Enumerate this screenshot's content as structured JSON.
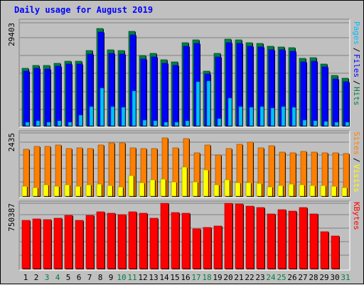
{
  "chart_data": {
    "type": "bar",
    "title": "Daily usage for August 2019",
    "colors": {
      "background": "#c0c0c0",
      "title": "#0000ff",
      "hits": "#008040",
      "files": "#0000ff",
      "pages": "#00c0ff",
      "visits": "#ffff00",
      "sites": "#ff8000",
      "kbytes": "#ff0000",
      "weekend_day_label": "#008040",
      "weekday_label": "#000000",
      "gridline": "#808080"
    },
    "categories": [
      "1",
      "2",
      "3",
      "4",
      "5",
      "6",
      "7",
      "8",
      "9",
      "10",
      "11",
      "12",
      "13",
      "14",
      "15",
      "16",
      "17",
      "18",
      "19",
      "20",
      "21",
      "22",
      "23",
      "24",
      "25",
      "26",
      "27",
      "28",
      "29",
      "30",
      "31"
    ],
    "weekend_days": [
      "3",
      "4",
      "10",
      "11",
      "17",
      "18",
      "24",
      "25",
      "31"
    ],
    "panels": [
      {
        "name": "hits-files-pages",
        "ytick": "29403",
        "ylim": [
          0,
          29403
        ],
        "legend": [
          {
            "label": "Hits",
            "color": "#008040"
          },
          {
            "label": "Files",
            "color": "#0000ff"
          },
          {
            "label": "Pages",
            "color": "#00c0ff"
          }
        ],
        "series": [
          {
            "name": "Hits",
            "values": [
              16500,
              17300,
              17300,
              17900,
              18500,
              18500,
              21400,
              27800,
              21700,
              21400,
              27000,
              20000,
              20700,
              18800,
              18200,
              23700,
              24600,
              15700,
              20600,
              24800,
              24600,
              23700,
              23600,
              22700,
              22600,
              22300,
              19200,
              19400,
              17700,
              14300,
              13600
            ]
          },
          {
            "name": "Files",
            "values": [
              15700,
              16400,
              16300,
              17000,
              17700,
              17700,
              20400,
              26700,
              20700,
              20400,
              25900,
              19000,
              19700,
              17900,
              17300,
              22700,
              23600,
              14900,
              19600,
              23800,
              23600,
              22700,
              22600,
              21700,
              21600,
              21300,
              18300,
              18400,
              16800,
              13300,
              12600
            ]
          },
          {
            "name": "Pages",
            "values": [
              1000,
              1500,
              1000,
              1500,
              1000,
              3000,
              5500,
              10800,
              5500,
              5300,
              10000,
              1600,
              1500,
              1000,
              1000,
              1500,
              12600,
              12800,
              2100,
              8000,
              5500,
              5200,
              5500,
              5000,
              5400,
              5300,
              1600,
              1500,
              1200,
              1000,
              1000
            ]
          }
        ]
      },
      {
        "name": "sites-visits",
        "ytick": "2435",
        "ylim": [
          0,
          2435
        ],
        "legend": [
          {
            "label": "Visits",
            "color": "#ffff00"
          },
          {
            "label": "Sites",
            "color": "#ff8000"
          }
        ],
        "series": [
          {
            "name": "Visits",
            "values": [
              390,
              340,
              430,
              380,
              430,
              380,
              430,
              470,
              420,
              350,
              790,
              530,
              630,
              670,
              560,
              1130,
              550,
              1010,
              430,
              630,
              510,
              520,
              500,
              360,
              410,
              460,
              440,
              400,
              410,
              370,
              340
            ]
          },
          {
            "name": "Sites",
            "values": [
              1810,
              1920,
              1920,
              1960,
              1840,
              1860,
              1820,
              1970,
              2060,
              2060,
              1860,
              1820,
              1820,
              2230,
              1870,
              2220,
              1660,
              1960,
              1590,
              1820,
              2000,
              2080,
              1850,
              1950,
              1700,
              1670,
              1720,
              1690,
              1660,
              1670,
              1640
            ]
          }
        ]
      },
      {
        "name": "kbytes",
        "ytick": "750387",
        "ylim": [
          0,
          750387
        ],
        "legend": [
          {
            "label": "KBytes",
            "color": "#ff0000"
          }
        ],
        "series": [
          {
            "name": "KBytes",
            "values": [
              556000,
              568000,
              562000,
              580000,
              614000,
              556000,
              614000,
              653000,
              637000,
              622000,
              652000,
              634000,
              580000,
              750000,
              648000,
              633000,
              456000,
              475000,
              486000,
              750000,
              742000,
              718000,
              701000,
              630000,
              681000,
              661000,
              700000,
              631000,
              428000,
              377000,
              0
            ]
          }
        ]
      }
    ]
  }
}
